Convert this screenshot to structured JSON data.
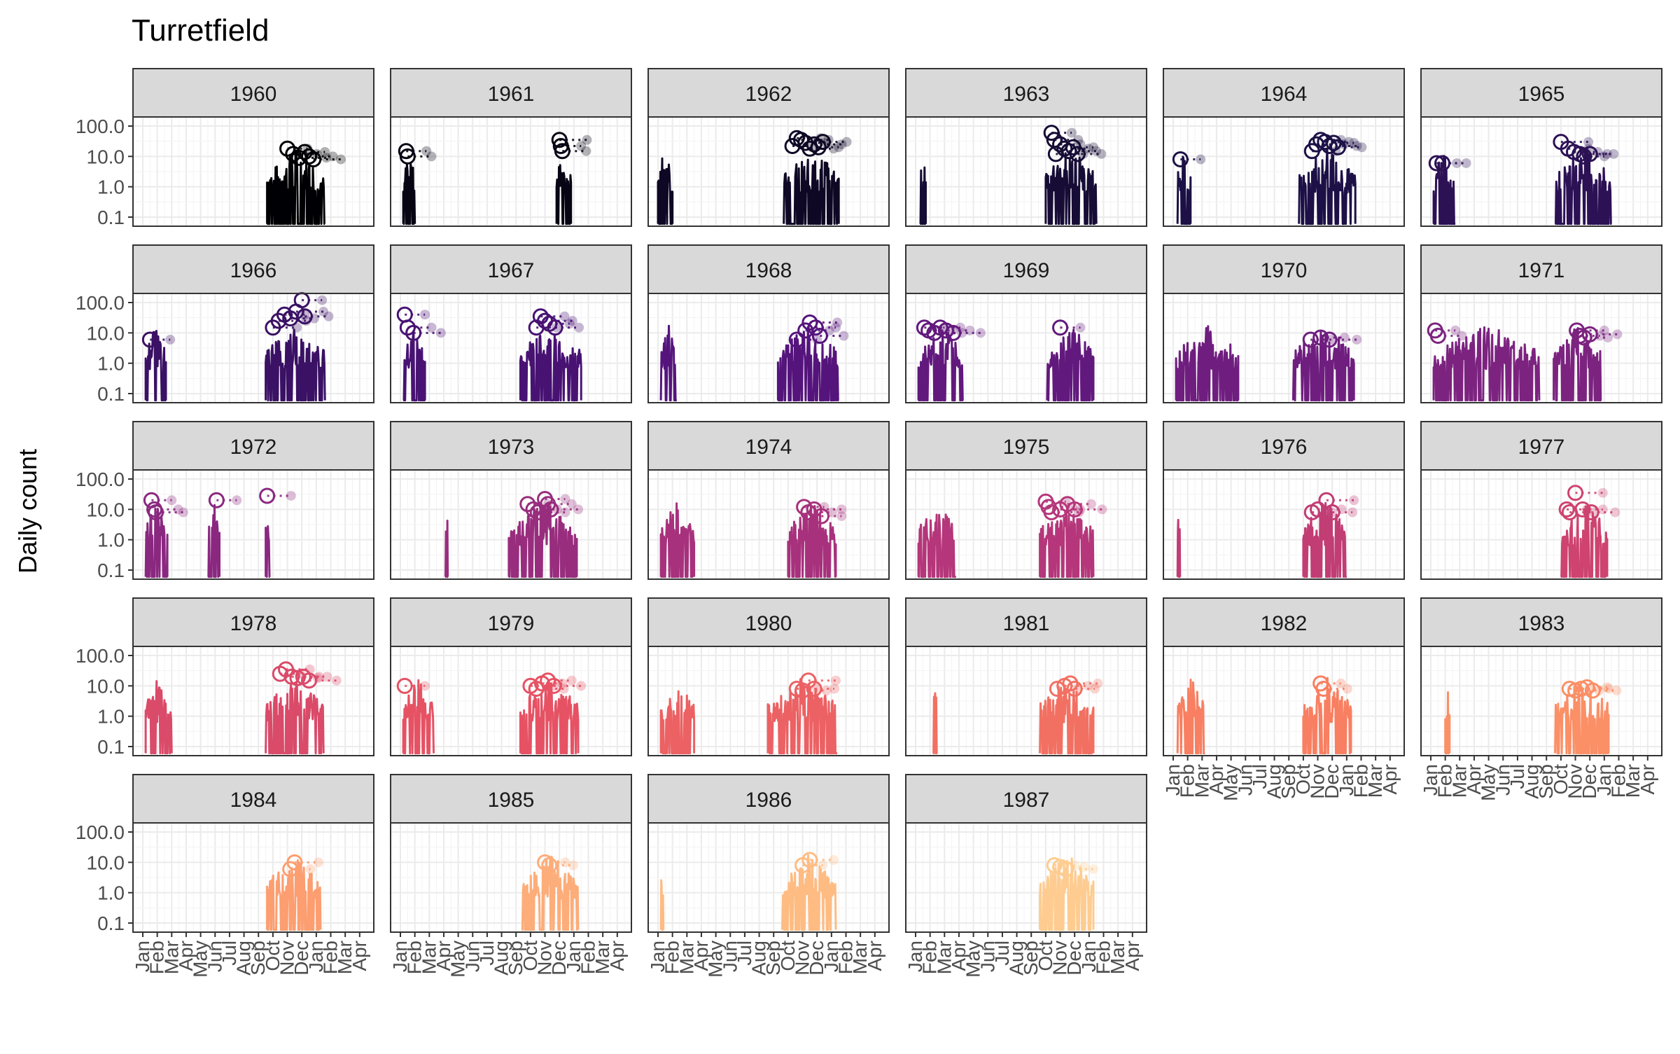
{
  "chart_data": {
    "type": "line",
    "title": "Turretfield",
    "ylabel": "Daily count",
    "xlabel": "",
    "y_scale": "log10",
    "ylim": [
      0.1,
      100
    ],
    "y_ticks": [
      "0.1",
      "1.0",
      "10.0",
      "100.0"
    ],
    "x_tick_labels": [
      "Jan",
      "Feb",
      "Mar",
      "Apr",
      "May",
      "Jun",
      "Jul",
      "Aug",
      "Sep",
      "Oct",
      "Nov",
      "Dec",
      "Jan",
      "Feb",
      "Mar",
      "Apr"
    ],
    "grid": true,
    "facet_layout": "6 columns, 5 rows, 28 panels (1960–1987)",
    "color_scale": "magma (dark purple 1960 → light orange 1987)",
    "series_styles": [
      "solid line: daily counts",
      "open circle: peak count",
      "dotted line and translucent point: peak carried to end of season"
    ],
    "panels": [
      {
        "label": "1960",
        "season": [
          8.6,
          12.6
        ],
        "peaks": [
          [
            10.0,
            18
          ],
          [
            10.4,
            12
          ],
          [
            10.8,
            9
          ],
          [
            11.2,
            14
          ],
          [
            11.5,
            10
          ],
          [
            11.8,
            8
          ]
        ]
      },
      {
        "label": "1961",
        "season": [
          0.2,
          1.0,
          10.8,
          11.8
        ],
        "peaks": [
          [
            0.4,
            15
          ],
          [
            0.5,
            10
          ],
          [
            11.0,
            35
          ],
          [
            11.1,
            22
          ],
          [
            11.2,
            15
          ]
        ]
      },
      {
        "label": "1962",
        "season": [
          0.0,
          1.0,
          8.7,
          12.5
        ],
        "peaks": [
          [
            9.3,
            22
          ],
          [
            9.6,
            40
          ],
          [
            9.9,
            35
          ],
          [
            10.2,
            28
          ],
          [
            10.5,
            18
          ],
          [
            10.8,
            25
          ],
          [
            11.1,
            20
          ],
          [
            11.4,
            30
          ]
        ]
      },
      {
        "label": "1963",
        "season": [
          0.3,
          0.7,
          9.0,
          12.5
        ],
        "peaks": [
          [
            9.4,
            60
          ],
          [
            9.6,
            35
          ],
          [
            9.7,
            12
          ],
          [
            10.0,
            25
          ],
          [
            10.3,
            18
          ],
          [
            10.6,
            15
          ],
          [
            10.9,
            20
          ],
          [
            11.2,
            12
          ]
        ]
      },
      {
        "label": "1964",
        "season": [
          0.3,
          1.2,
          8.7,
          12.6
        ],
        "peaks": [
          [
            0.5,
            8
          ],
          [
            9.6,
            15
          ],
          [
            9.9,
            25
          ],
          [
            10.2,
            35
          ],
          [
            10.5,
            30
          ],
          [
            10.8,
            22
          ],
          [
            11.1,
            28
          ],
          [
            11.4,
            20
          ]
        ]
      },
      {
        "label": "1965",
        "season": [
          0.2,
          1.7,
          8.6,
          12.5
        ],
        "peaks": [
          [
            0.4,
            6
          ],
          [
            0.8,
            6
          ],
          [
            9.0,
            30
          ],
          [
            9.5,
            18
          ],
          [
            9.9,
            14
          ],
          [
            10.3,
            12
          ],
          [
            10.6,
            10
          ],
          [
            11.0,
            12
          ]
        ]
      },
      {
        "label": "1966",
        "season": [
          0.2,
          1.6,
          8.5,
          12.6
        ],
        "peaks": [
          [
            0.5,
            6
          ],
          [
            9.0,
            15
          ],
          [
            9.4,
            25
          ],
          [
            9.8,
            40
          ],
          [
            10.2,
            30
          ],
          [
            10.6,
            50
          ],
          [
            11.0,
            120
          ],
          [
            11.2,
            35
          ]
        ]
      },
      {
        "label": "1967",
        "season": [
          0.2,
          1.7,
          8.3,
          12.5
        ],
        "peaks": [
          [
            0.3,
            40
          ],
          [
            0.5,
            15
          ],
          [
            0.9,
            10
          ],
          [
            9.4,
            15
          ],
          [
            9.7,
            35
          ],
          [
            10.0,
            25
          ],
          [
            10.3,
            20
          ],
          [
            10.7,
            15
          ]
        ]
      },
      {
        "label": "1968",
        "season": [
          0.2,
          1.3,
          8.3,
          12.5
        ],
        "peaks": [
          [
            9.6,
            6
          ],
          [
            10.2,
            12
          ],
          [
            10.5,
            22
          ],
          [
            10.9,
            15
          ],
          [
            11.2,
            8
          ]
        ]
      },
      {
        "label": "1969",
        "season": [
          0.2,
          3.3,
          9.1,
          12.3
        ],
        "peaks": [
          [
            0.6,
            15
          ],
          [
            0.9,
            12
          ],
          [
            1.3,
            10
          ],
          [
            1.7,
            15
          ],
          [
            2.1,
            12
          ],
          [
            2.6,
            10
          ],
          [
            10.0,
            15
          ]
        ]
      },
      {
        "label": "1970",
        "season": [
          0.2,
          4.5,
          8.3,
          12.5
        ],
        "peaks": [
          [
            9.5,
            6
          ],
          [
            10.2,
            7
          ],
          [
            10.8,
            6
          ]
        ]
      },
      {
        "label": "1971",
        "season": [
          0.2,
          7.5,
          8.5,
          11.8
        ],
        "peaks": [
          [
            0.3,
            12
          ],
          [
            0.5,
            8
          ],
          [
            10.1,
            12
          ],
          [
            10.3,
            8
          ],
          [
            10.6,
            7
          ],
          [
            11.0,
            9
          ]
        ]
      },
      {
        "label": "1972",
        "season": [
          0.2,
          1.7,
          4.5,
          5.3,
          8.5,
          8.8
        ],
        "peaks": [
          [
            0.6,
            20
          ],
          [
            0.8,
            10
          ],
          [
            0.9,
            8
          ],
          [
            5.1,
            20
          ],
          [
            8.6,
            28
          ]
        ]
      },
      {
        "label": "1973",
        "season": [
          3.1,
          3.3,
          7.5,
          12.2
        ],
        "peaks": [
          [
            8.8,
            15
          ],
          [
            9.2,
            10
          ],
          [
            9.5,
            8
          ],
          [
            10.0,
            22
          ],
          [
            10.2,
            15
          ],
          [
            10.4,
            10
          ]
        ]
      },
      {
        "label": "1974",
        "season": [
          0.2,
          2.5,
          9.0,
          12.3
        ],
        "peaks": [
          [
            10.1,
            12
          ],
          [
            10.4,
            8
          ],
          [
            10.8,
            10
          ],
          [
            11.3,
            6
          ]
        ]
      },
      {
        "label": "1975",
        "season": [
          0.2,
          2.8,
          8.6,
          12.3
        ],
        "peaks": [
          [
            9.0,
            18
          ],
          [
            9.2,
            12
          ],
          [
            9.4,
            8
          ],
          [
            10.0,
            10
          ],
          [
            10.5,
            15
          ],
          [
            11.0,
            10
          ]
        ]
      },
      {
        "label": "1976",
        "season": [
          0.3,
          0.5,
          9.0,
          12.0
        ],
        "peaks": [
          [
            9.6,
            8
          ],
          [
            10.0,
            10
          ],
          [
            10.6,
            20
          ],
          [
            11.0,
            8
          ]
        ]
      },
      {
        "label": "1977",
        "season": [
          9.0,
          12.2
        ],
        "peaks": [
          [
            9.4,
            10
          ],
          [
            9.6,
            8
          ],
          [
            10.0,
            35
          ],
          [
            10.5,
            10
          ],
          [
            11.1,
            8
          ]
        ]
      },
      {
        "label": "1978",
        "season": [
          0.2,
          2.0,
          8.5,
          12.5
        ],
        "peaks": [
          [
            9.5,
            25
          ],
          [
            9.9,
            35
          ],
          [
            10.3,
            20
          ],
          [
            10.7,
            18
          ],
          [
            11.1,
            20
          ],
          [
            11.5,
            15
          ]
        ]
      },
      {
        "label": "1979",
        "season": [
          0.2,
          2.3,
          8.3,
          12.3
        ],
        "peaks": [
          [
            0.3,
            10
          ],
          [
            9.0,
            10
          ],
          [
            9.4,
            8
          ],
          [
            9.8,
            12
          ],
          [
            10.2,
            15
          ],
          [
            10.6,
            10
          ]
        ]
      },
      {
        "label": "1980",
        "season": [
          0.2,
          2.5,
          7.6,
          12.4
        ],
        "peaks": [
          [
            9.6,
            8
          ],
          [
            10.0,
            7
          ],
          [
            10.4,
            15
          ],
          [
            10.8,
            8
          ]
        ]
      },
      {
        "label": "1981",
        "season": [
          1.2,
          1.5,
          8.6,
          12.3
        ],
        "peaks": [
          [
            9.8,
            8
          ],
          [
            10.3,
            10
          ],
          [
            10.7,
            12
          ],
          [
            11.0,
            8
          ]
        ]
      },
      {
        "label": "1982",
        "season": [
          0.3,
          2.2,
          9.0,
          12.3
        ],
        "peaks": [
          [
            10.2,
            12
          ],
          [
            10.4,
            8
          ]
        ]
      },
      {
        "label": "1983",
        "season": [
          1.0,
          1.3,
          8.6,
          12.3
        ],
        "peaks": [
          [
            9.6,
            8
          ],
          [
            10.0,
            7
          ],
          [
            10.4,
            8
          ],
          [
            10.8,
            9
          ],
          [
            11.2,
            7
          ]
        ]
      },
      {
        "label": "1984",
        "season": [
          8.6,
          12.3
        ],
        "peaks": [
          [
            10.2,
            6
          ],
          [
            10.5,
            10
          ]
        ]
      },
      {
        "label": "1985",
        "season": [
          8.4,
          12.3
        ],
        "peaks": [
          [
            10.0,
            10
          ],
          [
            10.3,
            8
          ]
        ]
      },
      {
        "label": "1986",
        "season": [
          0.2,
          0.4,
          8.6,
          12.3
        ],
        "peaks": [
          [
            10.0,
            8
          ],
          [
            10.5,
            12
          ]
        ]
      },
      {
        "label": "1987",
        "season": [
          8.6,
          12.3
        ],
        "peaks": [
          [
            9.6,
            8
          ],
          [
            10.0,
            7
          ],
          [
            10.4,
            6
          ]
        ]
      }
    ]
  }
}
